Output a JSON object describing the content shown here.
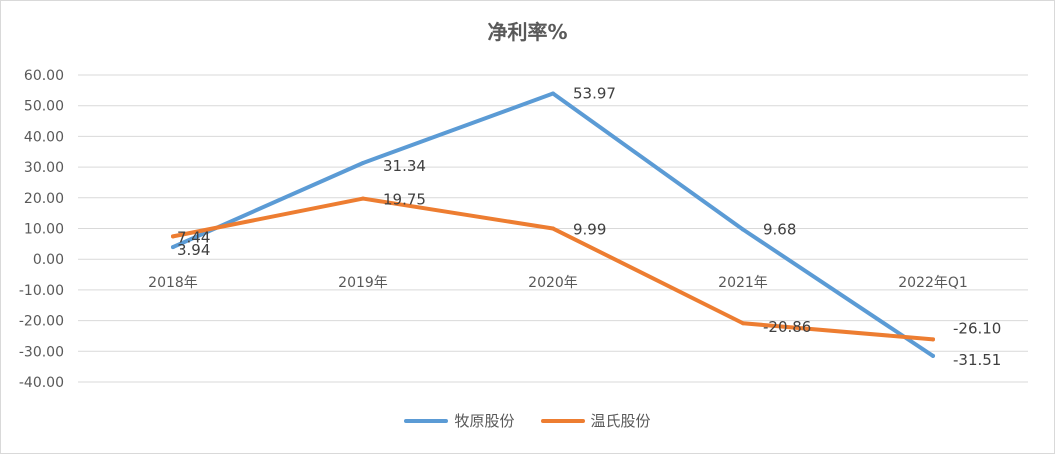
{
  "chart_data": {
    "type": "line",
    "title": "净利率%",
    "xlabel": "",
    "ylabel": "",
    "categories": [
      "2018年",
      "2019年",
      "2020年",
      "2021年",
      "2022年Q1"
    ],
    "ylim": [
      -40,
      60
    ],
    "yticks": [
      60,
      50,
      40,
      30,
      20,
      10,
      0,
      -10,
      -20,
      -30,
      -40
    ],
    "ytick_labels": [
      "60.00",
      "50.00",
      "40.00",
      "30.00",
      "20.00",
      "10.00",
      "0.00",
      "-10.00",
      "-20.00",
      "-30.00",
      "-40.00"
    ],
    "grid": true,
    "legend_position": "bottom",
    "series": [
      {
        "name": "牧原股份",
        "color": "#5b9bd5",
        "values": [
          3.94,
          31.34,
          53.97,
          9.68,
          -31.51
        ],
        "labels": [
          "3.94",
          "31.34",
          "53.97",
          "9.68",
          "-31.51"
        ]
      },
      {
        "name": "温氏股份",
        "color": "#ed7d31",
        "values": [
          7.44,
          19.75,
          9.99,
          -20.86,
          -26.1
        ],
        "labels": [
          "7.44",
          "19.75",
          "9.99",
          "-20.86",
          "-26.10"
        ]
      }
    ]
  }
}
